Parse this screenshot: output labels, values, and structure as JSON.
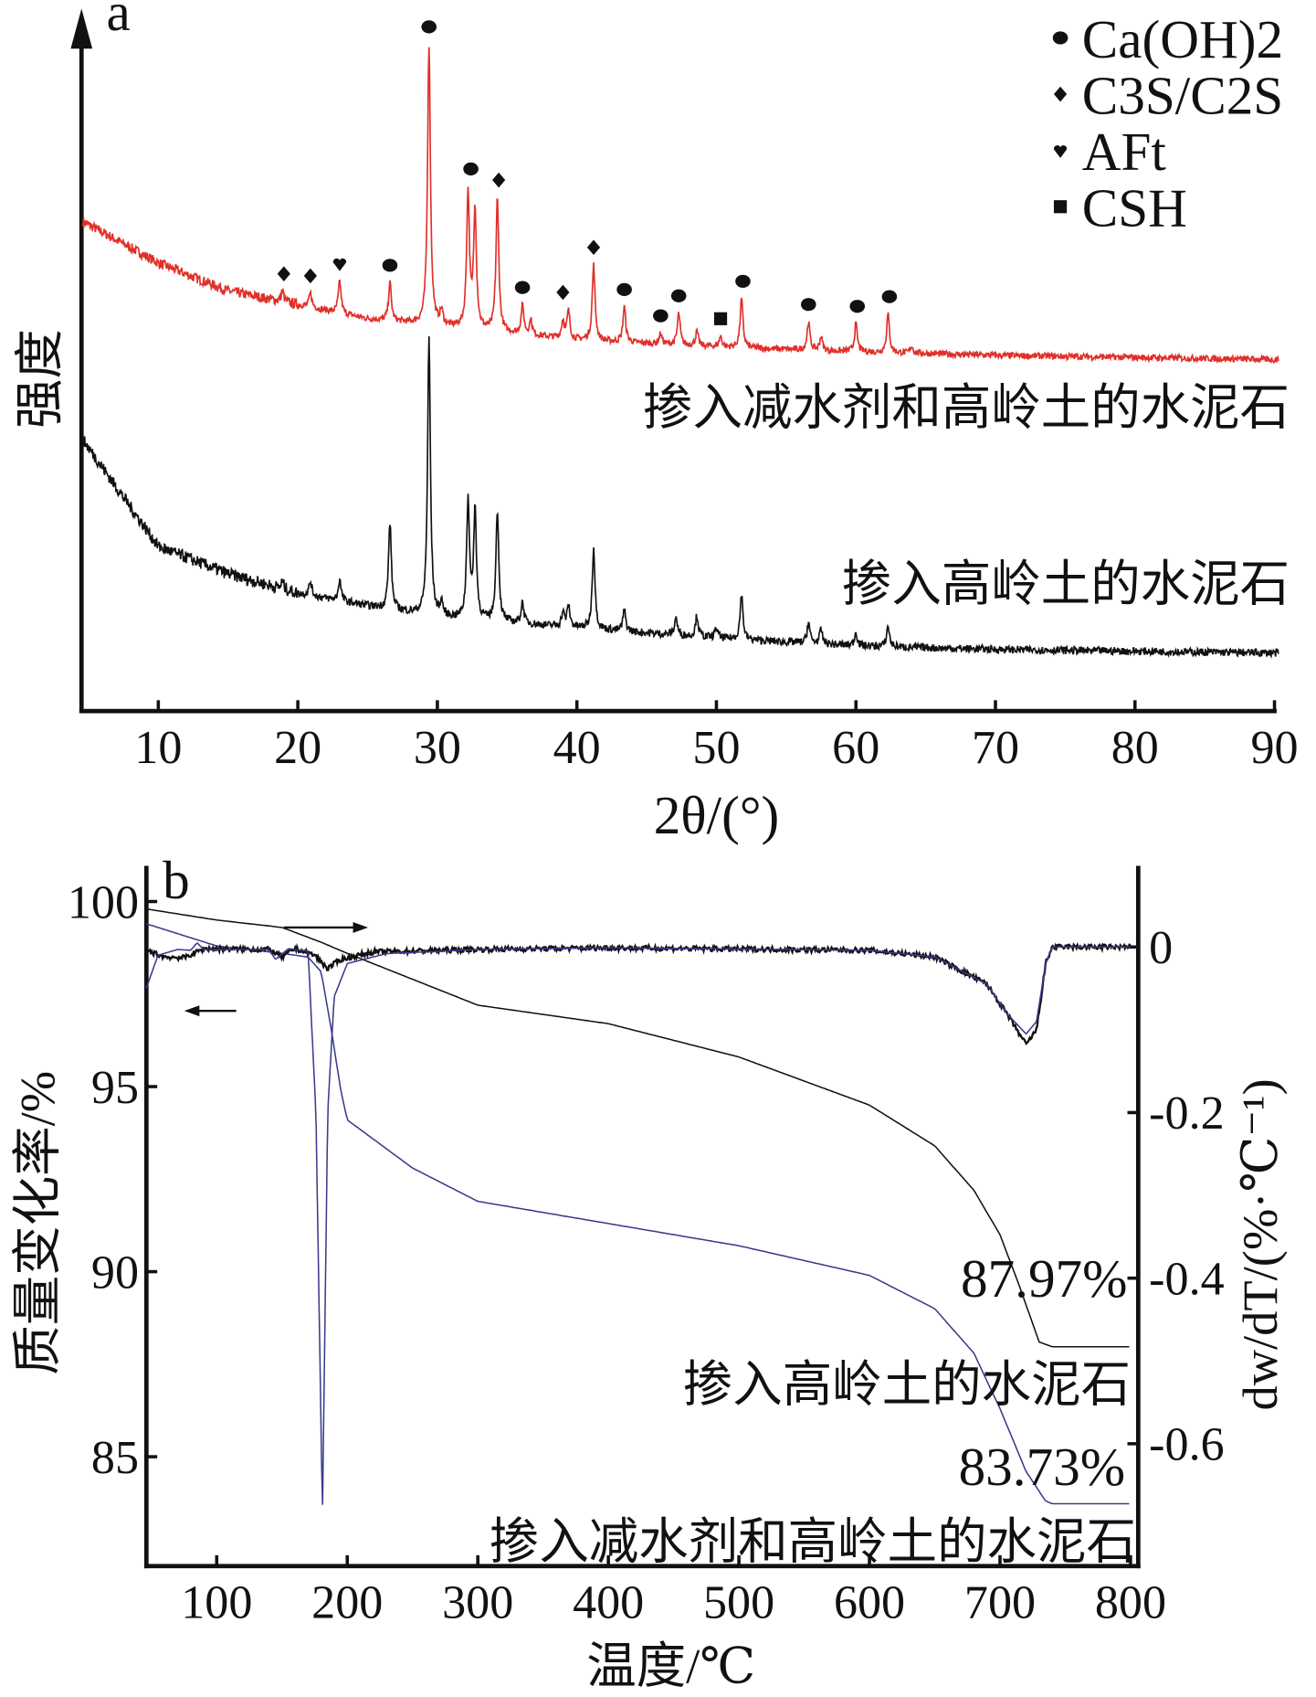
{
  "chart_data": [
    {
      "panel": "a",
      "type": "line",
      "title": "",
      "xlabel": "2θ/(°)",
      "ylabel": "强度",
      "xlim": [
        4.5,
        90.5
      ],
      "ylim": [
        0,
        100
      ],
      "grid": false,
      "xticks": [
        "10",
        "20",
        "30",
        "40",
        "50",
        "60",
        "70",
        "80",
        "90"
      ],
      "legend": {
        "placement": "top-right",
        "items": [
          {
            "marker": "circle",
            "label": "Ca(OH)2"
          },
          {
            "marker": "diamond",
            "label": "C3S/C2S"
          },
          {
            "marker": "heart",
            "label": "AFt"
          },
          {
            "marker": "square",
            "label": "CSH"
          }
        ]
      },
      "series": [
        {
          "name": "掺入减水剂和高岭土的水泥石",
          "color": "#e0302a",
          "baseline": [
            [
              4.5,
              70
            ],
            [
              10,
              64
            ],
            [
              15,
              60
            ],
            [
              20,
              58
            ],
            [
              25,
              56
            ],
            [
              30,
              55
            ],
            [
              40,
              53
            ],
            [
              50,
              52
            ],
            [
              60,
              51.3
            ],
            [
              70,
              50.8
            ],
            [
              90,
              50.2
            ]
          ],
          "peaks": [
            [
              18.9,
              1.5
            ],
            [
              20.9,
              2
            ],
            [
              23.0,
              4.6
            ],
            [
              26.6,
              5.4
            ],
            [
              29.4,
              40
            ],
            [
              30.3,
              2
            ],
            [
              32.2,
              19.3
            ],
            [
              32.7,
              17
            ],
            [
              34.3,
              19
            ],
            [
              36.1,
              4
            ],
            [
              36.7,
              2
            ],
            [
              39.0,
              2.5
            ],
            [
              39.4,
              3.9
            ],
            [
              41.2,
              10.8
            ],
            [
              43.4,
              5
            ],
            [
              46.0,
              1.5
            ],
            [
              47.3,
              4.5
            ],
            [
              48.6,
              2
            ],
            [
              50.3,
              1.5
            ],
            [
              51.8,
              7
            ],
            [
              56.6,
              4
            ],
            [
              57.5,
              2
            ],
            [
              60.0,
              4
            ],
            [
              62.3,
              5.5
            ],
            [
              64.0,
              1
            ]
          ],
          "markers": [
            [
              19.0,
              "diamond"
            ],
            [
              20.9,
              "diamond"
            ],
            [
              23.0,
              "heart"
            ],
            [
              26.6,
              "circle"
            ],
            [
              29.4,
              "circle"
            ],
            [
              32.4,
              "circle"
            ],
            [
              34.4,
              "diamond"
            ],
            [
              36.1,
              "circle"
            ],
            [
              39.0,
              "diamond"
            ],
            [
              41.2,
              "diamond"
            ],
            [
              43.4,
              "circle"
            ],
            [
              46.0,
              "circle"
            ],
            [
              47.3,
              "circle"
            ],
            [
              50.3,
              "square"
            ],
            [
              51.9,
              "circle"
            ],
            [
              56.6,
              "circle"
            ],
            [
              60.1,
              "circle"
            ],
            [
              62.4,
              "circle"
            ]
          ]
        },
        {
          "name": "掺入高岭土的水泥石",
          "color": "#111111",
          "baseline": [
            [
              4.5,
              39
            ],
            [
              10,
              23.5
            ],
            [
              15,
              19.6
            ],
            [
              20,
              16.8
            ],
            [
              25,
              15
            ],
            [
              30,
              13.4
            ],
            [
              40,
              11.9
            ],
            [
              50,
              10.4
            ],
            [
              60,
              9.3
            ],
            [
              70,
              8.8
            ],
            [
              90,
              8.3
            ]
          ],
          "peaks": [
            [
              18.9,
              1
            ],
            [
              20.9,
              2
            ],
            [
              23.0,
              3
            ],
            [
              26.6,
              12.4
            ],
            [
              29.4,
              39.4
            ],
            [
              30.3,
              2
            ],
            [
              32.2,
              17
            ],
            [
              32.7,
              15.5
            ],
            [
              34.3,
              16
            ],
            [
              36.1,
              3
            ],
            [
              39.0,
              2
            ],
            [
              39.4,
              3
            ],
            [
              41.2,
              11.6
            ],
            [
              43.4,
              3
            ],
            [
              47.1,
              2.5
            ],
            [
              48.6,
              3
            ],
            [
              50.0,
              1.5
            ],
            [
              51.8,
              6.5
            ],
            [
              56.6,
              3
            ],
            [
              57.5,
              2
            ],
            [
              60.0,
              2
            ],
            [
              62.3,
              3
            ]
          ]
        }
      ]
    },
    {
      "panel": "b",
      "type": "line",
      "xlabel": "温度/℃",
      "ylabel": "质量变化率/%",
      "y2label": "dw/dT/(%·℃⁻¹)",
      "xlim": [
        46,
        800
      ],
      "ylim": [
        82,
        101
      ],
      "y2lim": [
        -0.75,
        0.07
      ],
      "xticks": [
        "100",
        "200",
        "300",
        "400",
        "500",
        "600",
        "700",
        "800"
      ],
      "yticks": [
        "100",
        "95",
        "90",
        "85"
      ],
      "y2ticks": [
        "0",
        "-0.2",
        "-0.4",
        "-0.6"
      ],
      "annotations": [
        "87.97%",
        "83.73%"
      ],
      "series": [
        {
          "name": "掺入高岭土的水泥石",
          "kind": "TG",
          "color": "#111111",
          "points": [
            [
              46,
              99.8
            ],
            [
              100,
              99.5
            ],
            [
              150,
              99.3
            ],
            [
              180,
              98.9
            ],
            [
              200,
              98.6
            ],
            [
              250,
              97.9
            ],
            [
              300,
              97.2
            ],
            [
              400,
              96.7
            ],
            [
              500,
              95.8
            ],
            [
              600,
              94.5
            ],
            [
              650,
              93.4
            ],
            [
              680,
              92.2
            ],
            [
              700,
              91
            ],
            [
              715,
              89.6
            ],
            [
              730,
              88.1
            ],
            [
              740,
              87.97
            ],
            [
              800,
              87.97
            ]
          ]
        },
        {
          "name": "掺入减水剂和高岭土的水泥石",
          "kind": "TG",
          "color": "#3a3a8c",
          "points": [
            [
              46,
              99.4
            ],
            [
              100,
              98.8
            ],
            [
              150,
              98.6
            ],
            [
              170,
              98.5
            ],
            [
              180,
              98.1
            ],
            [
              188,
              96.5
            ],
            [
              195,
              94.9
            ],
            [
              200,
              94.1
            ],
            [
              250,
              92.8
            ],
            [
              300,
              91.9
            ],
            [
              400,
              91.3
            ],
            [
              500,
              90.7
            ],
            [
              600,
              89.9
            ],
            [
              650,
              89
            ],
            [
              680,
              87.8
            ],
            [
              700,
              86.3
            ],
            [
              720,
              84.6
            ],
            [
              735,
              83.8
            ],
            [
              740,
              83.73
            ],
            [
              800,
              83.73
            ]
          ]
        },
        {
          "name": "掺入高岭土的水泥石",
          "kind": "DTG",
          "color": "#111111",
          "points": [
            [
              46,
              -0.004
            ],
            [
              60,
              -0.012
            ],
            [
              75,
              -0.013
            ],
            [
              90,
              -0.002
            ],
            [
              140,
              -0.003
            ],
            [
              150,
              -0.012
            ],
            [
              160,
              -0.002
            ],
            [
              175,
              -0.01
            ],
            [
              185,
              -0.026
            ],
            [
              195,
              -0.015
            ],
            [
              220,
              -0.006
            ],
            [
              300,
              -0.003
            ],
            [
              400,
              -0.001
            ],
            [
              600,
              -0.004
            ],
            [
              650,
              -0.012
            ],
            [
              690,
              -0.045
            ],
            [
              705,
              -0.08
            ],
            [
              720,
              -0.118
            ],
            [
              728,
              -0.1
            ],
            [
              735,
              -0.02
            ],
            [
              740,
              0
            ],
            [
              800,
              0
            ]
          ]
        },
        {
          "name": "掺入减水剂和高岭土的水泥石",
          "kind": "DTG",
          "color": "#3a3a8c",
          "points": [
            [
              46,
              -0.05
            ],
            [
              55,
              -0.01
            ],
            [
              70,
              -0.003
            ],
            [
              80,
              -0.004
            ],
            [
              85,
              0.005
            ],
            [
              90,
              -0.003
            ],
            [
              140,
              -0.003
            ],
            [
              145,
              -0.015
            ],
            [
              155,
              -0.002
            ],
            [
              170,
              -0.005
            ],
            [
              176,
              -0.2
            ],
            [
              181,
              -0.686
            ],
            [
              185,
              -0.2
            ],
            [
              190,
              -0.06
            ],
            [
              200,
              -0.02
            ],
            [
              230,
              -0.008
            ],
            [
              300,
              -0.003
            ],
            [
              400,
              -0.001
            ],
            [
              600,
              -0.004
            ],
            [
              650,
              -0.012
            ],
            [
              690,
              -0.045
            ],
            [
              705,
              -0.08
            ],
            [
              720,
              -0.105
            ],
            [
              728,
              -0.09
            ],
            [
              735,
              -0.02
            ],
            [
              740,
              0
            ],
            [
              800,
              0
            ]
          ]
        }
      ]
    }
  ],
  "labels": {
    "panel_a": "a",
    "panel_b": "b"
  }
}
